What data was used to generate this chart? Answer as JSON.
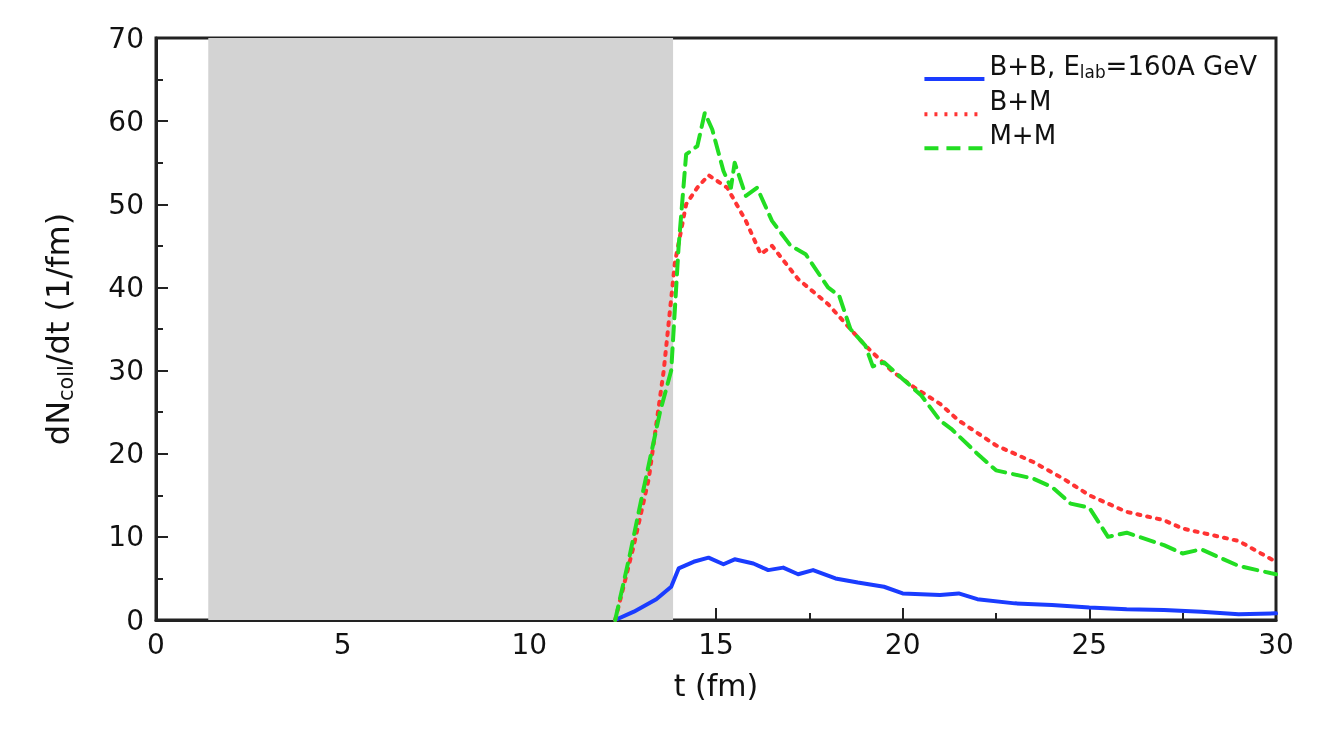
{
  "chart_data": {
    "type": "line",
    "xlabel": "t (fm)",
    "ylabel": "dN$_{coll}$/dt (1/fm)",
    "xlim": [
      0,
      30
    ],
    "ylim": [
      0,
      70
    ],
    "xticks": [
      0,
      5,
      10,
      15,
      20,
      25,
      30
    ],
    "yticks": [
      0,
      10,
      20,
      30,
      40,
      50,
      60,
      70
    ],
    "grid": false,
    "legend": "top right",
    "marker": "none",
    "bands": [
      {
        "axis": "x",
        "from": 1.4,
        "to": 13.85,
        "color": "#d3d3d3"
      }
    ],
    "series": [
      {
        "name": "B+B, E$_{lab}$=160A GeV",
        "color": "#1a3cff",
        "line_style": "solid",
        "x": [
          12.3,
          12.8,
          13.4,
          13.8,
          14.0,
          14.4,
          14.8,
          15.2,
          15.5,
          16.0,
          16.4,
          16.8,
          17.2,
          17.6,
          18.2,
          18.8,
          19.5,
          20.0,
          21.0,
          21.5,
          22.0,
          23.0,
          24.0,
          25.0,
          26.0,
          27.0,
          28.0,
          29.0,
          30.0
        ],
        "values": [
          0,
          1,
          2.5,
          4,
          6.2,
          7,
          7.5,
          6.7,
          7.3,
          6.8,
          6,
          6.3,
          5.5,
          6,
          5,
          4.5,
          4,
          3.2,
          3,
          3.2,
          2.5,
          2,
          1.8,
          1.5,
          1.3,
          1.2,
          1,
          0.7,
          0.8
        ]
      },
      {
        "name": "B+M",
        "color": "#ff3333",
        "line_style": "dotted",
        "x": [
          12.3,
          12.8,
          13.2,
          13.6,
          13.9,
          14.2,
          14.5,
          14.8,
          15.3,
          15.8,
          16.2,
          16.5,
          17.2,
          18.0,
          19.0,
          19.7,
          20.3,
          21.0,
          21.5,
          22.5,
          23.5,
          24.3,
          25.0,
          26.0,
          27.0,
          27.5,
          28.5,
          29.0,
          30.0
        ],
        "values": [
          0,
          9,
          17,
          30,
          43,
          50,
          52,
          53.5,
          52,
          48,
          44,
          45,
          41,
          38,
          33,
          30,
          28,
          26,
          24,
          21,
          19,
          17,
          15,
          13,
          12,
          11,
          10,
          9.5,
          7
        ]
      },
      {
        "name": "M+M",
        "color": "#22dd22",
        "line_style": "dashed",
        "x": [
          12.3,
          12.7,
          13.0,
          13.5,
          13.8,
          14.0,
          14.2,
          14.5,
          14.7,
          14.9,
          15.2,
          15.4,
          15.5,
          15.8,
          16.1,
          16.5,
          17.0,
          17.4,
          18.0,
          18.3,
          18.6,
          19.0,
          19.2,
          19.5,
          20.0,
          20.5,
          21.0,
          21.3,
          22.0,
          22.5,
          23.5,
          24.0,
          24.5,
          25.0,
          25.5,
          26.0,
          27.0,
          27.5,
          28.0,
          29.0,
          30.0
        ],
        "values": [
          0,
          8,
          14.5,
          25,
          30,
          45,
          56,
          57,
          61,
          59,
          54,
          52,
          55,
          51,
          52,
          48,
          45,
          44,
          40,
          39,
          35,
          33,
          30.5,
          31,
          29,
          27,
          24,
          23,
          20,
          18,
          17,
          16,
          14,
          13.5,
          10,
          10.5,
          9,
          8,
          8.5,
          6.5,
          5.5
        ]
      }
    ]
  }
}
